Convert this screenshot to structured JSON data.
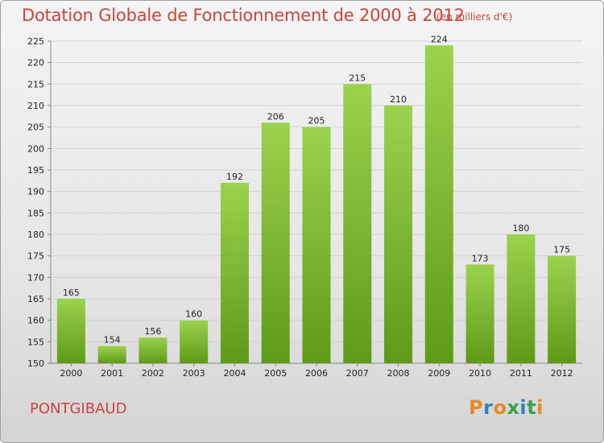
{
  "header": {
    "title": "Dotation Globale de Fonctionnement de 2000 à 2012",
    "subtitle": "(en milliers d'€)"
  },
  "footer": {
    "place": "PONTGIBAUD",
    "logo_text": "Proxiti"
  },
  "colors": {
    "title": "#c8463c",
    "bar_top": "#9bd24e",
    "bar_bottom": "#5e9a16",
    "logo_letters": [
      "#e58a2a",
      "#2f7fc1",
      "#e58a2a",
      "#3aa14a",
      "#2f7fc1",
      "#3aa14a",
      "#e58a2a"
    ]
  },
  "chart_data": {
    "type": "bar",
    "title": "Dotation Globale de Fonctionnement de 2000 à 2012",
    "subtitle": "(en milliers d'€)",
    "categories": [
      "2000",
      "2001",
      "2002",
      "2003",
      "2004",
      "2005",
      "2006",
      "2007",
      "2008",
      "2009",
      "2010",
      "2011",
      "2012"
    ],
    "values": [
      165,
      154,
      156,
      160,
      192,
      206,
      205,
      215,
      210,
      224,
      173,
      180,
      175
    ],
    "ylim": [
      150,
      225
    ],
    "yticks": [
      150,
      155,
      160,
      165,
      170,
      175,
      180,
      185,
      190,
      195,
      200,
      205,
      210,
      215,
      220,
      225
    ],
    "grid": true,
    "xlabel": "",
    "ylabel": ""
  }
}
